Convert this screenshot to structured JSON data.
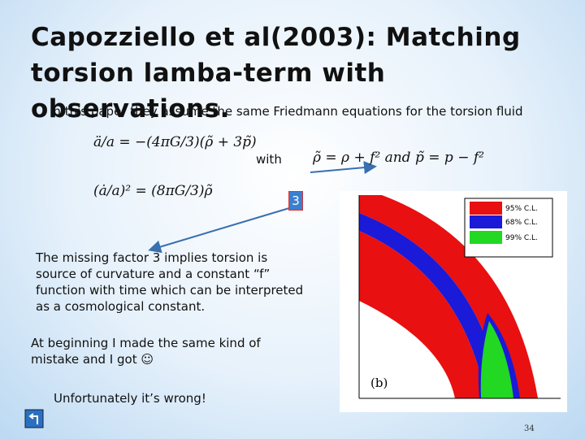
{
  "title": "Capozziello et al(2003): Matching torsion lamba-term with observations.",
  "body": {
    "intro": "In this paper they assume the same Friedmann equations for the torsion fluid",
    "with": "with",
    "factor": "3",
    "explanation": "The missing factor 3 implies torsion is source of curvature and a constant “f” function with time which can be interpreted as a cosmological constant.",
    "beginning": "At beginning I made the same kind of mistake and I got ☺",
    "conclusion": "Unfortunately it’s wrong!"
  },
  "equations": [
    "ä/a = −(4πG/3)(ρ̃ + 3p̃)",
    "(ȧ/a)² = (8πG/3)ρ̃",
    "ρ̃ = ρ + f² and p̃ = p − f²"
  ],
  "figure": {
    "legend": [
      "95% C.L.",
      "68% C.L.",
      "99% C.L."
    ],
    "panel": "(b)"
  },
  "page_number": "34"
}
